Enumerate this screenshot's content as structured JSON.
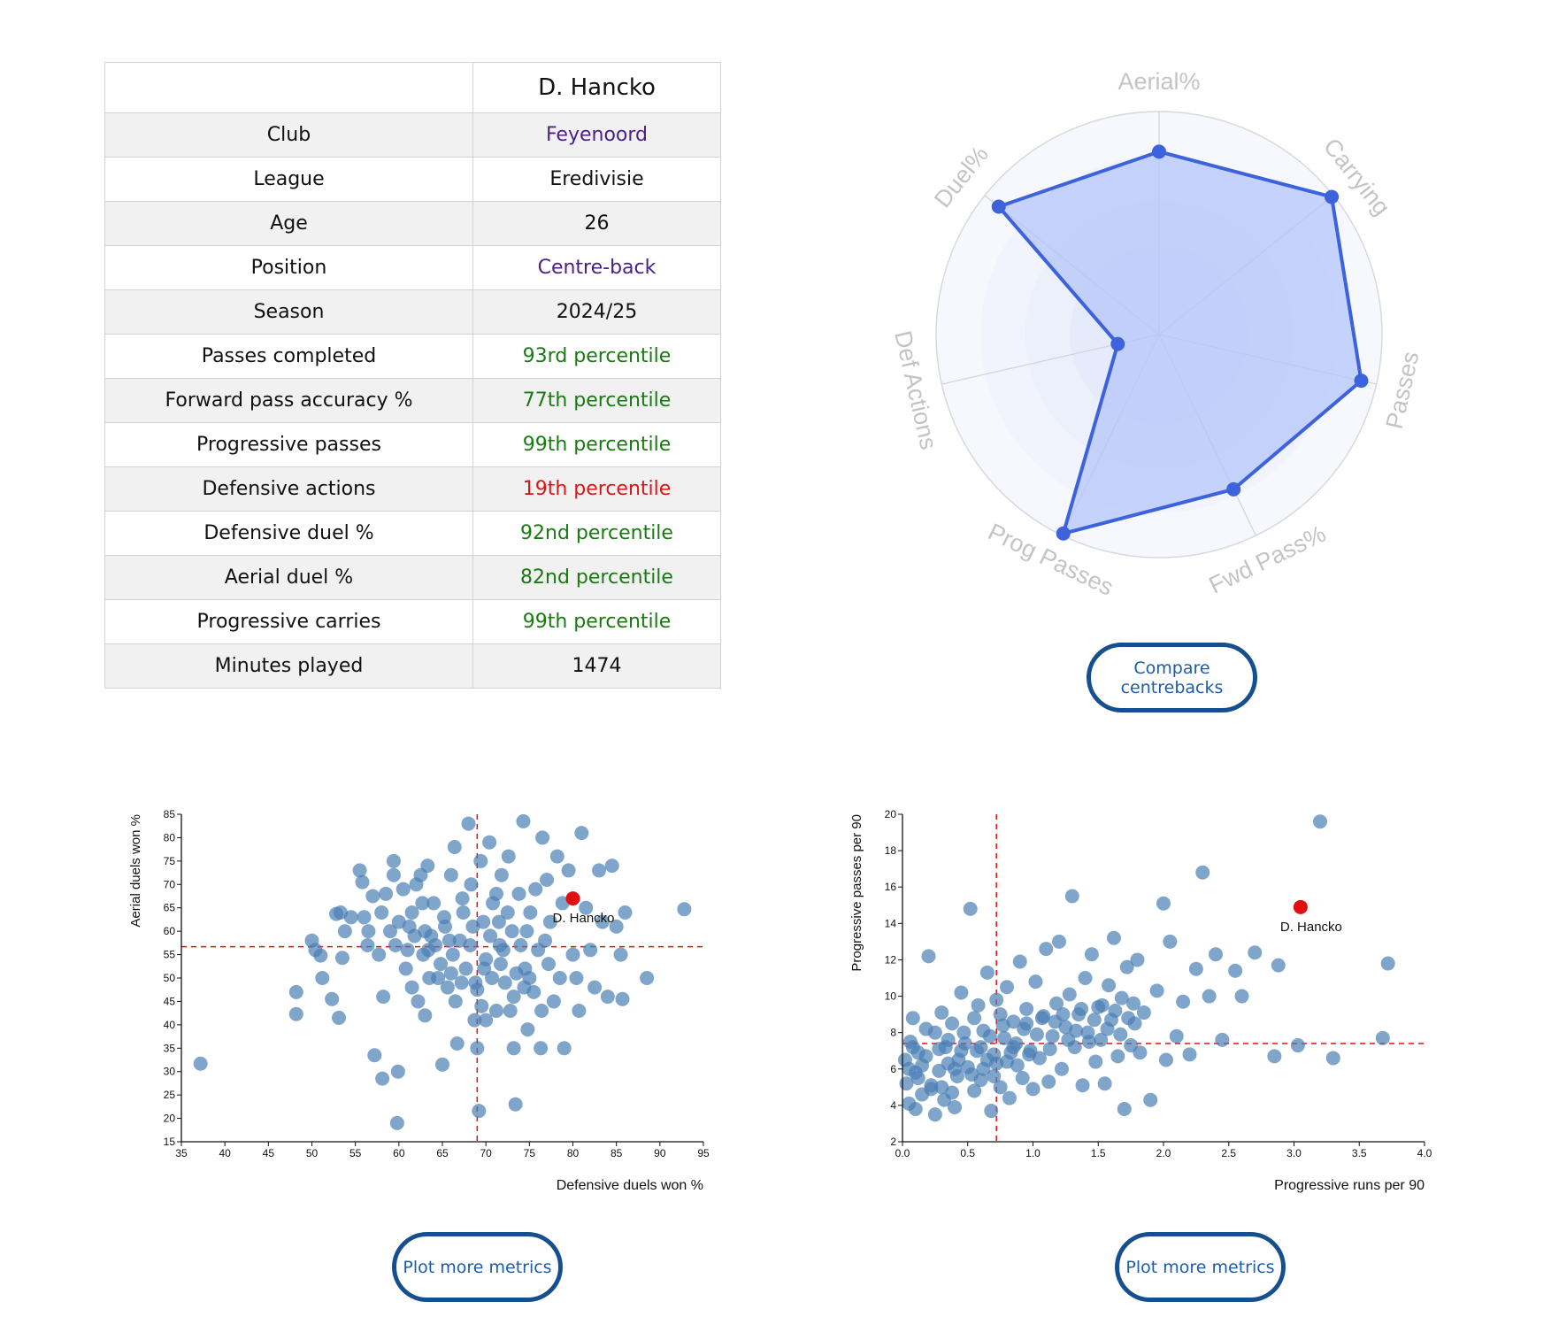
{
  "profile_table": {
    "player_name": "D. Hancko",
    "rows": [
      {
        "label": "Club",
        "value": "Feyenoord",
        "color": "#4b1e8a"
      },
      {
        "label": "League",
        "value": "Eredivisie",
        "color": "#111111"
      },
      {
        "label": "Age",
        "value": "26",
        "color": "#111111"
      },
      {
        "label": "Position",
        "value": "Centre-back",
        "color": "#4b1e8a"
      },
      {
        "label": "Season",
        "value": "2024/25",
        "color": "#111111"
      },
      {
        "label": "Passes completed",
        "value": "93rd percentile",
        "color": "#1a7a12"
      },
      {
        "label": "Forward pass accuracy %",
        "value": "77th percentile",
        "color": "#1a7a12"
      },
      {
        "label": "Progressive passes",
        "value": "99th percentile",
        "color": "#1a7a12"
      },
      {
        "label": "Defensive actions",
        "value": "19th percentile",
        "color": "#d61818"
      },
      {
        "label": "Defensive duel %",
        "value": "92nd percentile",
        "color": "#1a7a12"
      },
      {
        "label": "Aerial duel %",
        "value": "82nd percentile",
        "color": "#1a7a12"
      },
      {
        "label": "Progressive carries",
        "value": "99th percentile",
        "color": "#1a7a12"
      },
      {
        "label": "Minutes played",
        "value": "1474",
        "color": "#111111"
      }
    ]
  },
  "buttons": {
    "compare": "Compare centrebacks",
    "plot_more_left": "Plot more metrics",
    "plot_more_right": "Plot more metrics"
  },
  "colors": {
    "radar_line": "#3d63dc",
    "radar_fill": "#b4c6fa",
    "scatter_point": "#4a7fb5",
    "highlight_point": "#e01010",
    "reference_line": "#e01010",
    "button_border": "#164f8f",
    "button_text": "#1d5ca8"
  },
  "chart_data": [
    {
      "type": "radar",
      "axes": [
        "Aerial%",
        "Carrying",
        "Passes",
        "Fwd Pass%",
        "Prog Passes",
        "Def Actions",
        "Duel%"
      ],
      "values": [
        82,
        99,
        93,
        77,
        99,
        19,
        92
      ],
      "range": [
        0,
        100
      ]
    },
    {
      "type": "scatter",
      "xlabel": "Defensive duels won %",
      "ylabel": "Aerial duels won %",
      "xlim": [
        35,
        95
      ],
      "ylim": [
        15,
        85
      ],
      "xticks": [
        35,
        40,
        45,
        50,
        55,
        60,
        65,
        70,
        75,
        80,
        85,
        90,
        95
      ],
      "yticks": [
        15,
        20,
        25,
        30,
        35,
        40,
        45,
        50,
        55,
        60,
        65,
        70,
        75,
        80,
        85
      ],
      "reference_lines": {
        "x": 69,
        "y": 56.7
      },
      "highlight": {
        "name": "D. Hancko",
        "x": 80,
        "y": 67
      },
      "points": [
        [
          37.2,
          31.7
        ],
        [
          48.2,
          47
        ],
        [
          48.2,
          42.3
        ],
        [
          50,
          58
        ],
        [
          50.4,
          56
        ],
        [
          51,
          54.8
        ],
        [
          51.2,
          50
        ],
        [
          52.3,
          45.5
        ],
        [
          52.8,
          63.7
        ],
        [
          53.1,
          41.5
        ],
        [
          53.3,
          64
        ],
        [
          53.5,
          54.3
        ],
        [
          53.8,
          60
        ],
        [
          54.5,
          63
        ],
        [
          55.5,
          73
        ],
        [
          55.8,
          70.5
        ],
        [
          56,
          63
        ],
        [
          56.4,
          57
        ],
        [
          57,
          67.5
        ],
        [
          57.2,
          33.5
        ],
        [
          57.7,
          55
        ],
        [
          58.1,
          28.5
        ],
        [
          58.2,
          46
        ],
        [
          58.5,
          68
        ],
        [
          59,
          60
        ],
        [
          59.4,
          75
        ],
        [
          59.4,
          72
        ],
        [
          59.8,
          19
        ],
        [
          59.9,
          30
        ],
        [
          60,
          62
        ],
        [
          60.5,
          69
        ],
        [
          61,
          56
        ],
        [
          61.5,
          64
        ],
        [
          62,
          70
        ],
        [
          62.2,
          45
        ],
        [
          62.5,
          72
        ],
        [
          63,
          60
        ],
        [
          63.3,
          74
        ],
        [
          63.4,
          56
        ],
        [
          64,
          66
        ],
        [
          64.5,
          50
        ],
        [
          65,
          31.5
        ],
        [
          65.3,
          61
        ],
        [
          65.6,
          48
        ],
        [
          66,
          72
        ],
        [
          66.4,
          78
        ],
        [
          66.7,
          36
        ],
        [
          67,
          58
        ],
        [
          67.4,
          64
        ],
        [
          67.7,
          52
        ],
        [
          68,
          83
        ],
        [
          68.3,
          70
        ],
        [
          68.7,
          41
        ],
        [
          69,
          47.5
        ],
        [
          69,
          35
        ],
        [
          69.2,
          21.6
        ],
        [
          69.4,
          75
        ],
        [
          69.7,
          62
        ],
        [
          70,
          54
        ],
        [
          70.4,
          79
        ],
        [
          70.8,
          66
        ],
        [
          71.2,
          43
        ],
        [
          71.6,
          57
        ],
        [
          71.8,
          72
        ],
        [
          72.2,
          49
        ],
        [
          72.6,
          76
        ],
        [
          73,
          60
        ],
        [
          73.2,
          35
        ],
        [
          73.4,
          23
        ],
        [
          73.8,
          68
        ],
        [
          74.3,
          83.5
        ],
        [
          74.5,
          52
        ],
        [
          74.8,
          39
        ],
        [
          75.1,
          64
        ],
        [
          75.5,
          47
        ],
        [
          76,
          56
        ],
        [
          76.3,
          35
        ],
        [
          76.5,
          80
        ],
        [
          77,
          71
        ],
        [
          77.4,
          62
        ],
        [
          77.8,
          45
        ],
        [
          78.2,
          76
        ],
        [
          78.8,
          66
        ],
        [
          79,
          35
        ],
        [
          79.5,
          73
        ],
        [
          80,
          55
        ],
        [
          80.4,
          50
        ],
        [
          80.7,
          43
        ],
        [
          81,
          81
        ],
        [
          81.5,
          65
        ],
        [
          82,
          56
        ],
        [
          82.5,
          48
        ],
        [
          83,
          73
        ],
        [
          83.4,
          62
        ],
        [
          84,
          46
        ],
        [
          84.5,
          74
        ],
        [
          85,
          61
        ],
        [
          85.5,
          55
        ],
        [
          85.7,
          45.5
        ],
        [
          86,
          64
        ],
        [
          88.5,
          50
        ],
        [
          92.8,
          64.7
        ],
        [
          61.2,
          61
        ],
        [
          63.7,
          59
        ],
        [
          64.8,
          53
        ],
        [
          66.2,
          55
        ],
        [
          68.2,
          57
        ],
        [
          70.5,
          59
        ],
        [
          71.7,
          53
        ],
        [
          72.5,
          64
        ],
        [
          74,
          57
        ],
        [
          75,
          50
        ],
        [
          76.8,
          58
        ],
        [
          60.8,
          52
        ],
        [
          62.7,
          66
        ],
        [
          65.2,
          63
        ],
        [
          67.2,
          49
        ],
        [
          69.5,
          44
        ],
        [
          71.2,
          68
        ],
        [
          73.5,
          51
        ],
        [
          58,
          64
        ],
        [
          61.5,
          48
        ],
        [
          66,
          51
        ],
        [
          63,
          42
        ],
        [
          68.5,
          61
        ],
        [
          72,
          56
        ],
        [
          74.7,
          60
        ],
        [
          70,
          41
        ],
        [
          67.3,
          67
        ],
        [
          64.2,
          57
        ],
        [
          62.8,
          55
        ],
        [
          65.8,
          58
        ],
        [
          69.8,
          52
        ],
        [
          71.5,
          62
        ],
        [
          73.2,
          46
        ],
        [
          75.7,
          69
        ],
        [
          77.2,
          53
        ],
        [
          56.5,
          60
        ],
        [
          59.6,
          57
        ],
        [
          61.8,
          59
        ],
        [
          63.5,
          50
        ],
        [
          66.5,
          45
        ],
        [
          68.8,
          49
        ],
        [
          70.7,
          50
        ],
        [
          72.8,
          43
        ],
        [
          74.4,
          48
        ],
        [
          76.4,
          43
        ],
        [
          78.5,
          50
        ]
      ]
    },
    {
      "type": "scatter",
      "xlabel": "Progressive runs per 90",
      "ylabel": "Progressive passes per 90",
      "xlim": [
        0.0,
        4.0
      ],
      "ylim": [
        2,
        20
      ],
      "xticks": [
        0.0,
        0.5,
        1.0,
        1.5,
        2.0,
        2.5,
        3.0,
        3.5,
        4.0
      ],
      "yticks": [
        2,
        4,
        6,
        8,
        10,
        12,
        14,
        16,
        18,
        20
      ],
      "reference_lines": {
        "x": 0.72,
        "y": 7.4
      },
      "highlight": {
        "name": "D. Hancko",
        "x": 3.05,
        "y": 14.9
      },
      "points": [
        [
          0.02,
          6.5
        ],
        [
          0.03,
          5.2
        ],
        [
          0.05,
          4.1
        ],
        [
          0.06,
          7.5
        ],
        [
          0.08,
          8.8
        ],
        [
          0.1,
          3.8
        ],
        [
          0.1,
          5.8
        ],
        [
          0.12,
          6.9
        ],
        [
          0.15,
          4.6
        ],
        [
          0.18,
          8.2
        ],
        [
          0.2,
          12.2
        ],
        [
          0.22,
          5.1
        ],
        [
          0.25,
          3.5
        ],
        [
          0.28,
          7.1
        ],
        [
          0.3,
          9.1
        ],
        [
          0.32,
          4.3
        ],
        [
          0.35,
          6.3
        ],
        [
          0.38,
          8.5
        ],
        [
          0.4,
          3.9
        ],
        [
          0.42,
          5.6
        ],
        [
          0.45,
          10.2
        ],
        [
          0.48,
          7.4
        ],
        [
          0.5,
          6.1
        ],
        [
          0.52,
          14.8
        ],
        [
          0.55,
          4.8
        ],
        [
          0.58,
          9.5
        ],
        [
          0.6,
          5.4
        ],
        [
          0.62,
          8.1
        ],
        [
          0.65,
          11.3
        ],
        [
          0.68,
          3.7
        ],
        [
          0.7,
          6.8
        ],
        [
          0.72,
          9.8
        ],
        [
          0.75,
          5.0
        ],
        [
          0.78,
          7.7
        ],
        [
          0.8,
          10.5
        ],
        [
          0.82,
          4.4
        ],
        [
          0.85,
          8.6
        ],
        [
          0.88,
          6.2
        ],
        [
          0.9,
          11.9
        ],
        [
          0.92,
          5.5
        ],
        [
          0.95,
          9.3
        ],
        [
          0.98,
          7.0
        ],
        [
          1.0,
          4.9
        ],
        [
          1.02,
          10.8
        ],
        [
          1.05,
          6.6
        ],
        [
          1.08,
          8.9
        ],
        [
          1.1,
          12.6
        ],
        [
          1.12,
          5.3
        ],
        [
          1.15,
          7.8
        ],
        [
          1.18,
          9.6
        ],
        [
          1.2,
          13.0
        ],
        [
          1.22,
          6.0
        ],
        [
          1.25,
          8.3
        ],
        [
          1.28,
          10.1
        ],
        [
          1.3,
          15.5
        ],
        [
          1.32,
          7.2
        ],
        [
          1.35,
          9.0
        ],
        [
          1.38,
          5.1
        ],
        [
          1.4,
          11.0
        ],
        [
          1.42,
          8.0
        ],
        [
          1.45,
          12.3
        ],
        [
          1.48,
          6.4
        ],
        [
          1.5,
          9.4
        ],
        [
          1.52,
          7.6
        ],
        [
          1.55,
          5.2
        ],
        [
          1.58,
          10.6
        ],
        [
          1.6,
          8.7
        ],
        [
          1.62,
          13.2
        ],
        [
          1.65,
          6.7
        ],
        [
          1.68,
          9.9
        ],
        [
          1.7,
          3.8
        ],
        [
          1.72,
          11.6
        ],
        [
          1.75,
          7.3
        ],
        [
          1.78,
          8.5
        ],
        [
          1.8,
          12.0
        ],
        [
          1.82,
          6.9
        ],
        [
          1.85,
          9.1
        ],
        [
          1.9,
          4.3
        ],
        [
          1.95,
          10.3
        ],
        [
          2.0,
          15.1
        ],
        [
          2.02,
          6.5
        ],
        [
          2.05,
          13.0
        ],
        [
          2.1,
          7.8
        ],
        [
          2.15,
          9.7
        ],
        [
          2.2,
          6.8
        ],
        [
          2.25,
          11.5
        ],
        [
          2.3,
          16.8
        ],
        [
          2.35,
          10.0
        ],
        [
          2.4,
          12.3
        ],
        [
          2.45,
          7.6
        ],
        [
          2.55,
          11.4
        ],
        [
          2.6,
          10.0
        ],
        [
          2.7,
          12.4
        ],
        [
          2.85,
          6.7
        ],
        [
          2.88,
          11.7
        ],
        [
          3.03,
          7.3
        ],
        [
          3.2,
          19.6
        ],
        [
          3.3,
          6.6
        ],
        [
          3.68,
          7.7
        ],
        [
          3.72,
          11.8
        ],
        [
          0.05,
          6.0
        ],
        [
          0.12,
          5.5
        ],
        [
          0.18,
          6.7
        ],
        [
          0.22,
          4.9
        ],
        [
          0.28,
          5.9
        ],
        [
          0.33,
          7.2
        ],
        [
          0.38,
          4.7
        ],
        [
          0.43,
          6.5
        ],
        [
          0.47,
          8.0
        ],
        [
          0.53,
          5.7
        ],
        [
          0.57,
          7.0
        ],
        [
          0.62,
          6.0
        ],
        [
          0.67,
          7.8
        ],
        [
          0.72,
          6.3
        ],
        [
          0.77,
          8.4
        ],
        [
          0.83,
          6.9
        ],
        [
          0.87,
          7.4
        ],
        [
          0.93,
          8.2
        ],
        [
          0.97,
          6.8
        ],
        [
          1.03,
          7.9
        ],
        [
          1.07,
          8.8
        ],
        [
          1.13,
          7.1
        ],
        [
          1.17,
          8.6
        ],
        [
          1.23,
          9.0
        ],
        [
          1.27,
          7.6
        ],
        [
          1.33,
          8.1
        ],
        [
          1.37,
          9.3
        ],
        [
          1.43,
          7.5
        ],
        [
          1.47,
          8.7
        ],
        [
          1.53,
          9.5
        ],
        [
          1.57,
          8.2
        ],
        [
          1.63,
          9.2
        ],
        [
          1.67,
          7.9
        ],
        [
          1.73,
          8.8
        ],
        [
          1.77,
          9.6
        ],
        [
          0.08,
          7.2
        ],
        [
          0.15,
          6.2
        ],
        [
          0.25,
          8.0
        ],
        [
          0.35,
          7.6
        ],
        [
          0.45,
          7.0
        ],
        [
          0.55,
          8.8
        ],
        [
          0.65,
          6.5
        ],
        [
          0.75,
          9.0
        ],
        [
          0.85,
          7.2
        ],
        [
          0.95,
          8.5
        ],
        [
          0.3,
          5.0
        ],
        [
          0.4,
          6.0
        ],
        [
          0.6,
          7.2
        ],
        [
          0.7,
          5.6
        ],
        [
          0.8,
          6.4
        ]
      ]
    }
  ]
}
